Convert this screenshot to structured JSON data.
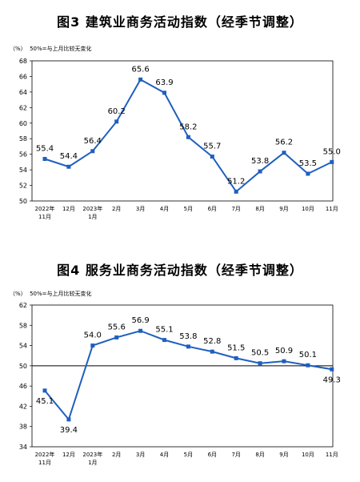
{
  "chart_data": [
    {
      "type": "line",
      "title": "图3  建筑业商务活动指数（经季节调整）",
      "note": "（%）  50%=与上月比较无变化",
      "categories": [
        "2022年\n11月",
        "12月",
        "2023年\n1月",
        "2月",
        "3月",
        "4月",
        "5月",
        "6月",
        "7月",
        "8月",
        "9月",
        "10月",
        "11月"
      ],
      "values": [
        55.4,
        54.4,
        56.4,
        60.2,
        65.6,
        63.9,
        58.2,
        55.7,
        51.2,
        53.8,
        56.2,
        53.5,
        55.0
      ],
      "value_labels": [
        "55.4",
        "54.4",
        "56.4",
        "60.2",
        "65.6",
        "63.9",
        "58.2",
        "55.7",
        "51.2",
        "53.8",
        "56.2",
        "53.5",
        "55.0"
      ],
      "ylim": [
        50,
        68
      ],
      "yticks": [
        "50",
        "52",
        "54",
        "56",
        "58",
        "60",
        "62",
        "64",
        "66",
        "68"
      ],
      "grid": false,
      "reference_line": null,
      "color": "#1f5fbf"
    },
    {
      "type": "line",
      "title": "图4  服务业商务活动指数（经季节调整）",
      "note": "（%）  50%=与上月比较无变化",
      "categories": [
        "2022年\n11月",
        "12月",
        "2023年\n1月",
        "2月",
        "3月",
        "4月",
        "5月",
        "6月",
        "7月",
        "8月",
        "9月",
        "10月",
        "11月"
      ],
      "values": [
        45.1,
        39.4,
        54.0,
        55.6,
        56.9,
        55.1,
        53.8,
        52.8,
        51.5,
        50.5,
        50.9,
        50.1,
        49.3
      ],
      "value_labels": [
        "45.1",
        "39.4",
        "54.0",
        "55.6",
        "56.9",
        "55.1",
        "53.8",
        "52.8",
        "51.5",
        "50.5",
        "50.9",
        "50.1",
        "49.3"
      ],
      "ylim": [
        34,
        62
      ],
      "yticks": [
        "34",
        "38",
        "42",
        "46",
        "50",
        "54",
        "58",
        "62"
      ],
      "grid": false,
      "reference_line": 50,
      "color": "#1f5fbf"
    }
  ]
}
